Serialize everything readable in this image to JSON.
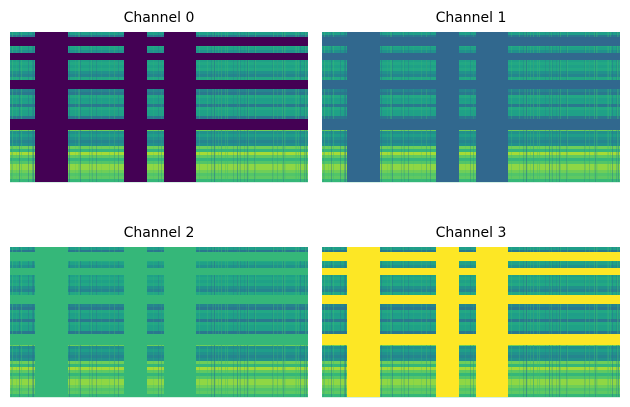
{
  "chart_data": [
    {
      "type": "heatmap",
      "title": "Channel 0",
      "mask_color": "#440154"
    },
    {
      "type": "heatmap",
      "title": "Channel 1",
      "mask_color": "#31688e"
    },
    {
      "type": "heatmap",
      "title": "Channel 2",
      "mask_color": "#35b779"
    },
    {
      "type": "heatmap",
      "title": "Channel 3",
      "mask_color": "#fde725"
    }
  ]
}
